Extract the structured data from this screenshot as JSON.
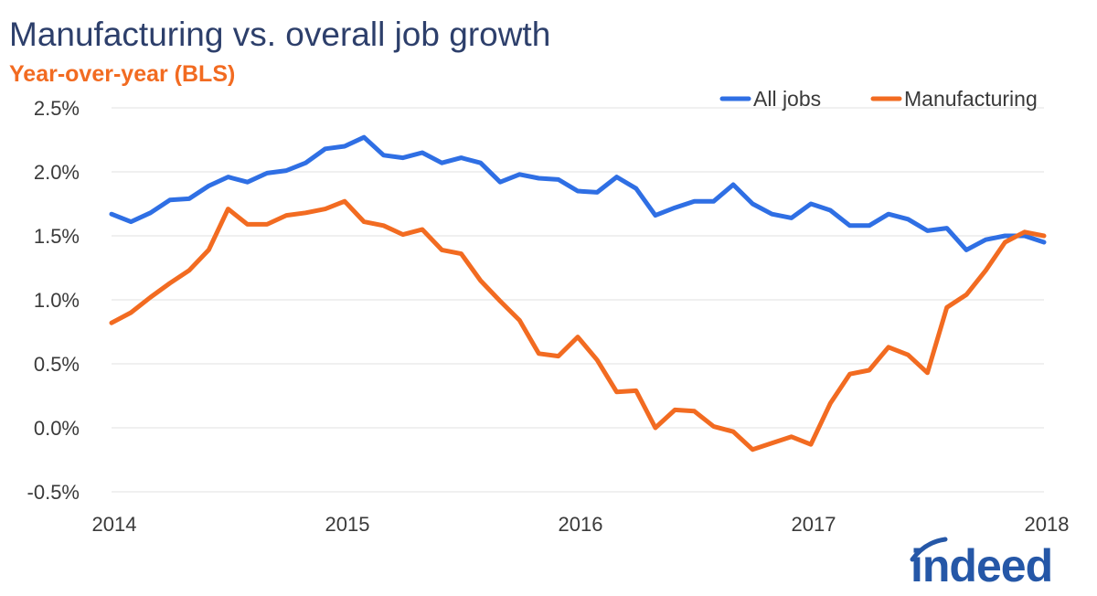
{
  "chart_data": {
    "type": "line",
    "title": "Manufacturing vs. overall job growth",
    "subtitle": "Year-over-year (BLS)",
    "xlabel": "",
    "ylabel": "",
    "x_ticks": [
      "2014",
      "2015",
      "2016",
      "2017",
      "2018"
    ],
    "y_ticks": [
      "-0.5%",
      "0.0%",
      "0.5%",
      "1.0%",
      "1.5%",
      "2.0%",
      "2.5%"
    ],
    "xlim": [
      2014.0,
      2018.0
    ],
    "ylim": [
      -0.5,
      2.5
    ],
    "grid": "horizontal",
    "legend": "top-right",
    "x": [
      2014.0,
      2014.083,
      2014.167,
      2014.25,
      2014.333,
      2014.417,
      2014.5,
      2014.583,
      2014.667,
      2014.75,
      2014.833,
      2014.917,
      2015.0,
      2015.083,
      2015.167,
      2015.25,
      2015.333,
      2015.417,
      2015.5,
      2015.583,
      2015.667,
      2015.75,
      2015.833,
      2015.917,
      2016.0,
      2016.083,
      2016.167,
      2016.25,
      2016.333,
      2016.417,
      2016.5,
      2016.583,
      2016.667,
      2016.75,
      2016.833,
      2016.917,
      2017.0,
      2017.083,
      2017.167,
      2017.25,
      2017.333,
      2017.417,
      2017.5,
      2017.583,
      2017.667,
      2017.75,
      2017.833,
      2017.917,
      2018.0
    ],
    "series": [
      {
        "name": "All jobs",
        "color": "#2f6fe4",
        "values": [
          1.67,
          1.61,
          1.68,
          1.78,
          1.79,
          1.89,
          1.96,
          1.92,
          1.99,
          2.01,
          2.07,
          2.18,
          2.2,
          2.27,
          2.13,
          2.11,
          2.15,
          2.07,
          2.11,
          2.07,
          1.92,
          1.98,
          1.95,
          1.94,
          1.85,
          1.84,
          1.96,
          1.87,
          1.66,
          1.72,
          1.77,
          1.77,
          1.9,
          1.75,
          1.67,
          1.64,
          1.75,
          1.7,
          1.58,
          1.58,
          1.67,
          1.63,
          1.54,
          1.56,
          1.39,
          1.47,
          1.5,
          1.5,
          1.45
        ]
      },
      {
        "name": "Manufacturing",
        "color": "#f26b21",
        "values": [
          0.82,
          0.9,
          1.02,
          1.13,
          1.23,
          1.39,
          1.71,
          1.59,
          1.59,
          1.66,
          1.68,
          1.71,
          1.77,
          1.61,
          1.58,
          1.51,
          1.55,
          1.39,
          1.36,
          1.15,
          0.99,
          0.84,
          0.58,
          0.56,
          0.71,
          0.53,
          0.28,
          0.29,
          0.0,
          0.14,
          0.13,
          0.01,
          -0.03,
          -0.17,
          -0.12,
          -0.07,
          -0.13,
          0.19,
          0.42,
          0.45,
          0.63,
          0.57,
          0.43,
          0.94,
          1.04,
          1.23,
          1.45,
          1.53,
          1.5
        ]
      }
    ]
  },
  "branding": {
    "logo_text": "indeed",
    "logo_color": "#2557a7"
  }
}
